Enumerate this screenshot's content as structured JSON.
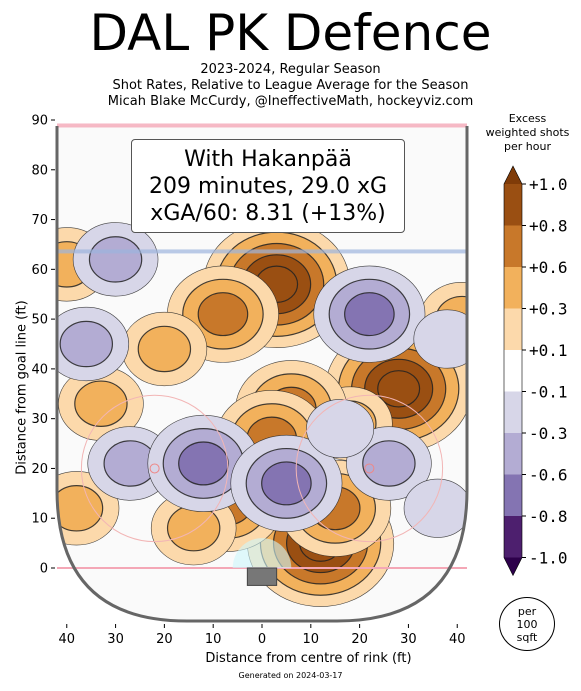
{
  "title": "DAL PK Defence",
  "subtitle_lines": [
    "2023-2024, Regular Season",
    "Shot Rates, Relative to League Average for the Season",
    "Micah Blake McCurdy, @IneffectiveMath, hockeyviz.com"
  ],
  "info_box": {
    "line1": "With Hakanpää",
    "line2": "209 minutes, 29.0 xG",
    "line3": "xGA/60: 8.31 (+13%)"
  },
  "colorbar": {
    "title_lines": [
      "Excess",
      "weighted shots",
      "per hour"
    ],
    "ticks": [
      "+1.0",
      "+0.8",
      "+0.6",
      "+0.3",
      "+0.1",
      "-0.1",
      "-0.3",
      "-0.6",
      "-0.8",
      "-1.0"
    ],
    "colors": [
      "#9a4f12",
      "#c8782a",
      "#f2b15c",
      "#fcd9ab",
      "#ffffff",
      "#d7d6e8",
      "#b3acd3",
      "#8474b2",
      "#4d1f6e"
    ],
    "top_arrow_color": "#7f3b08",
    "bottom_arrow_color": "#2d004b"
  },
  "unit_badge": [
    "per",
    "100",
    "sqft"
  ],
  "footer": "Generated on 2024-03-17",
  "chart_data": {
    "type": "heatmap",
    "xlabel": "Distance from centre of rink (ft)",
    "ylabel": "Distance from goal line (ft)",
    "xlim": [
      -42,
      42
    ],
    "ylim": [
      -11,
      90
    ],
    "xticks": [
      {
        "v": -40,
        "label": "40"
      },
      {
        "v": -30,
        "label": "30"
      },
      {
        "v": -20,
        "label": "20"
      },
      {
        "v": -10,
        "label": "10"
      },
      {
        "v": 0,
        "label": "0"
      },
      {
        "v": 10,
        "label": "10"
      },
      {
        "v": 20,
        "label": "20"
      },
      {
        "v": 30,
        "label": "30"
      },
      {
        "v": 40,
        "label": "40"
      }
    ],
    "yticks": [
      {
        "v": 0,
        "label": "0"
      },
      {
        "v": 10,
        "label": "10"
      },
      {
        "v": 20,
        "label": "20"
      },
      {
        "v": 30,
        "label": "30"
      },
      {
        "v": 40,
        "label": "40"
      },
      {
        "v": 50,
        "label": "50"
      },
      {
        "v": 60,
        "label": "60"
      },
      {
        "v": 70,
        "label": "70"
      },
      {
        "v": 80,
        "label": "80"
      },
      {
        "v": 90,
        "label": "90"
      }
    ],
    "hotspots": [
      {
        "x": 3,
        "y": 57,
        "level": 1.0
      },
      {
        "x": -8,
        "y": 51,
        "level": 0.6
      },
      {
        "x": -20,
        "y": 44,
        "level": 0.3
      },
      {
        "x": 28,
        "y": 36,
        "level": 1.0
      },
      {
        "x": 18,
        "y": 29,
        "level": 0.3
      },
      {
        "x": 12,
        "y": 5,
        "level": 1.0
      },
      {
        "x": 15,
        "y": 12,
        "level": 0.6
      },
      {
        "x": 6,
        "y": 32,
        "level": 0.6
      },
      {
        "x": 2,
        "y": 26,
        "level": 0.6
      },
      {
        "x": -7,
        "y": 13,
        "level": 0.6
      },
      {
        "x": -14,
        "y": 8,
        "level": 0.3
      },
      {
        "x": -33,
        "y": 33,
        "level": 0.3
      },
      {
        "x": -38,
        "y": 12,
        "level": 0.3
      },
      {
        "x": 41,
        "y": 50,
        "level": 0.3
      },
      {
        "x": -40,
        "y": 61,
        "level": 0.3
      },
      {
        "x": -27,
        "y": 21,
        "level": -0.3
      },
      {
        "x": -12,
        "y": 21,
        "level": -0.6
      },
      {
        "x": -30,
        "y": 62,
        "level": -0.3
      },
      {
        "x": -36,
        "y": 45,
        "level": -0.3
      },
      {
        "x": 22,
        "y": 51,
        "level": -0.6
      },
      {
        "x": 38,
        "y": 46,
        "level": -0.1
      },
      {
        "x": 26,
        "y": 21,
        "level": -0.3
      },
      {
        "x": 5,
        "y": 17,
        "level": -0.6
      },
      {
        "x": 36,
        "y": 12,
        "level": -0.1
      },
      {
        "x": 16,
        "y": 28,
        "level": -0.1
      }
    ]
  }
}
